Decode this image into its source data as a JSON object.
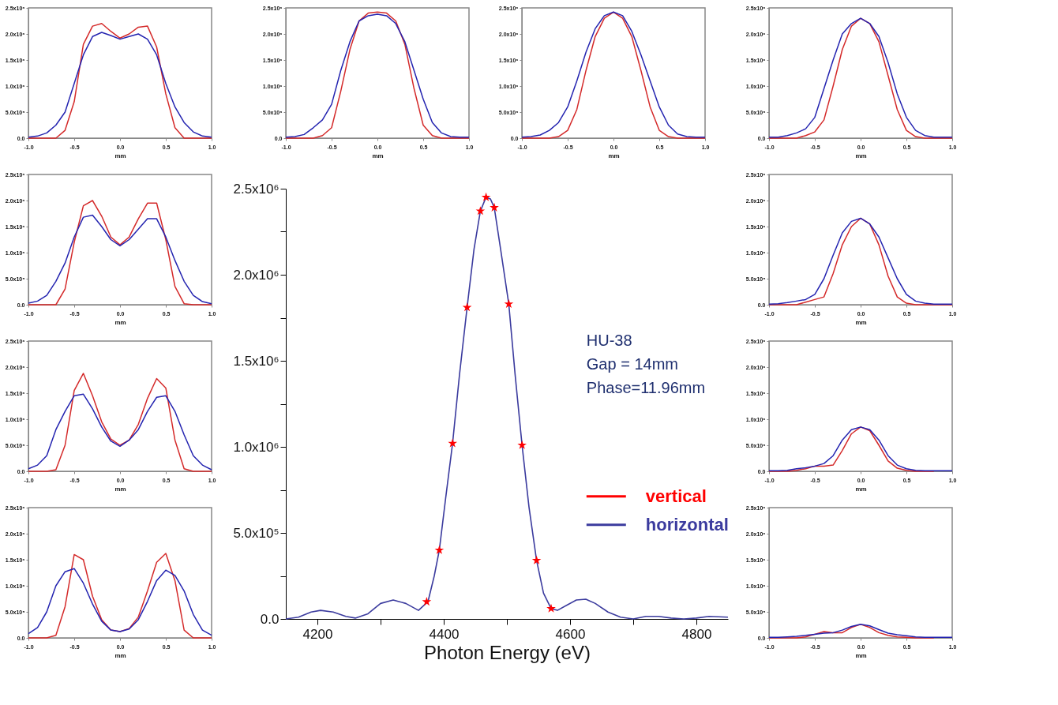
{
  "chart_data": [
    {
      "type": "line",
      "xlabel": "mm",
      "x": [
        -1,
        -0.9,
        -0.8,
        -0.7,
        -0.6,
        -0.5,
        -0.4,
        -0.3,
        -0.2,
        -0.1,
        0,
        0.1,
        0.2,
        0.3,
        0.4,
        0.5,
        0.6,
        0.7,
        0.8,
        0.9,
        1
      ],
      "xlim": [
        -1,
        1
      ],
      "xticks": [
        {
          "value": -1,
          "label": "-1.0"
        },
        {
          "value": -0.5,
          "label": "-0.5"
        },
        {
          "value": 0,
          "label": "0.0"
        },
        {
          "value": 0.5,
          "label": "0.5"
        },
        {
          "value": 1,
          "label": "1.0"
        }
      ],
      "ylim": [
        0,
        2500000.0
      ],
      "yticks": [
        {
          "value": 0,
          "label": "0.0"
        },
        {
          "value": 500000.0,
          "label": "5.0x10⁵"
        },
        {
          "value": 1000000.0,
          "label": "1.0x10⁶"
        },
        {
          "value": 1500000.0,
          "label": "1.5x10⁶"
        },
        {
          "value": 2000000.0,
          "label": "2.0x10⁶"
        },
        {
          "value": 2500000.0,
          "label": "2.5x10⁶"
        }
      ],
      "series": [
        {
          "color": "#d42a2a",
          "values": [
            0,
            0,
            0,
            0,
            150000.0,
            700000.0,
            1800000.0,
            2150000.0,
            2200000.0,
            2050000.0,
            1920000.0,
            2000000.0,
            2130000.0,
            2150000.0,
            1750000.0,
            850000.0,
            200000.0,
            0,
            0,
            0,
            0
          ]
        },
        {
          "color": "#2424b0",
          "values": [
            20000.0,
            40000.0,
            100000.0,
            250000.0,
            500000.0,
            1050000.0,
            1600000.0,
            1950000.0,
            2030000.0,
            1970000.0,
            1900000.0,
            1950000.0,
            2000000.0,
            1900000.0,
            1600000.0,
            1050000.0,
            600000.0,
            300000.0,
            120000.0,
            40000.0,
            20000.0
          ]
        }
      ]
    },
    {
      "type": "line",
      "xlabel": "mm",
      "x": [
        -1,
        -0.9,
        -0.8,
        -0.7,
        -0.6,
        -0.5,
        -0.4,
        -0.3,
        -0.2,
        -0.1,
        0,
        0.1,
        0.2,
        0.3,
        0.4,
        0.5,
        0.6,
        0.7,
        0.8,
        0.9,
        1
      ],
      "xlim": [
        -1,
        1
      ],
      "xticks": [
        {
          "value": -1,
          "label": "-1.0"
        },
        {
          "value": -0.5,
          "label": "-0.5"
        },
        {
          "value": 0,
          "label": "0.0"
        },
        {
          "value": 0.5,
          "label": "0.5"
        },
        {
          "value": 1,
          "label": "1.0"
        }
      ],
      "ylim": [
        0,
        2500000.0
      ],
      "yticks": [
        {
          "value": 0,
          "label": "0.0"
        },
        {
          "value": 500000.0,
          "label": "5.0x10⁵"
        },
        {
          "value": 1000000.0,
          "label": "1.0x10⁶"
        },
        {
          "value": 1500000.0,
          "label": "1.5x10⁶"
        },
        {
          "value": 2000000.0,
          "label": "2.0x10⁶"
        },
        {
          "value": 2500000.0,
          "label": "2.5x10⁶"
        }
      ],
      "series": [
        {
          "color": "#d42a2a",
          "values": [
            0,
            0,
            0,
            0,
            300000.0,
            1200000.0,
            1900000.0,
            2000000.0,
            1700000.0,
            1300000.0,
            1150000.0,
            1300000.0,
            1650000.0,
            1950000.0,
            1950000.0,
            1250000.0,
            350000.0,
            20000.0,
            0,
            0,
            0
          ]
        },
        {
          "color": "#2424b0",
          "values": [
            30000.0,
            70000.0,
            180000.0,
            450000.0,
            800000.0,
            1300000.0,
            1680000.0,
            1720000.0,
            1500000.0,
            1250000.0,
            1130000.0,
            1250000.0,
            1450000.0,
            1650000.0,
            1650000.0,
            1300000.0,
            850000.0,
            450000.0,
            180000.0,
            60000.0,
            20000.0
          ]
        }
      ]
    },
    {
      "type": "line",
      "xlabel": "mm",
      "x": [
        -1,
        -0.9,
        -0.8,
        -0.7,
        -0.6,
        -0.5,
        -0.4,
        -0.3,
        -0.2,
        -0.1,
        0,
        0.1,
        0.2,
        0.3,
        0.4,
        0.5,
        0.6,
        0.7,
        0.8,
        0.9,
        1
      ],
      "xlim": [
        -1,
        1
      ],
      "xticks": [
        {
          "value": -1,
          "label": "-1.0"
        },
        {
          "value": -0.5,
          "label": "-0.5"
        },
        {
          "value": 0,
          "label": "0.0"
        },
        {
          "value": 0.5,
          "label": "0.5"
        },
        {
          "value": 1,
          "label": "1.0"
        }
      ],
      "ylim": [
        0,
        2500000.0
      ],
      "yticks": [
        {
          "value": 0,
          "label": "0.0"
        },
        {
          "value": 500000.0,
          "label": "5.0x10⁵"
        },
        {
          "value": 1000000.0,
          "label": "1.0x10⁶"
        },
        {
          "value": 1500000.0,
          "label": "1.5x10⁶"
        },
        {
          "value": 2000000.0,
          "label": "2.0x10⁶"
        },
        {
          "value": 2500000.0,
          "label": "2.5x10⁶"
        }
      ],
      "series": [
        {
          "color": "#d42a2a",
          "values": [
            0,
            0,
            0,
            30000.0,
            500000.0,
            1550000.0,
            1880000.0,
            1450000.0,
            950000.0,
            620000.0,
            500000.0,
            600000.0,
            900000.0,
            1400000.0,
            1780000.0,
            1600000.0,
            600000.0,
            50000.0,
            0,
            0,
            0
          ]
        },
        {
          "color": "#2424b0",
          "values": [
            50000.0,
            120000.0,
            300000.0,
            800000.0,
            1150000.0,
            1450000.0,
            1480000.0,
            1200000.0,
            850000.0,
            580000.0,
            480000.0,
            600000.0,
            800000.0,
            1150000.0,
            1420000.0,
            1450000.0,
            1150000.0,
            700000.0,
            300000.0,
            120000.0,
            30000.0
          ]
        }
      ]
    },
    {
      "type": "line",
      "xlabel": "mm",
      "x": [
        -1,
        -0.9,
        -0.8,
        -0.7,
        -0.6,
        -0.5,
        -0.4,
        -0.3,
        -0.2,
        -0.1,
        0,
        0.1,
        0.2,
        0.3,
        0.4,
        0.5,
        0.6,
        0.7,
        0.8,
        0.9,
        1
      ],
      "xlim": [
        -1,
        1
      ],
      "xticks": [
        {
          "value": -1,
          "label": "-1.0"
        },
        {
          "value": -0.5,
          "label": "-0.5"
        },
        {
          "value": 0,
          "label": "0.0"
        },
        {
          "value": 0.5,
          "label": "0.5"
        },
        {
          "value": 1,
          "label": "1.0"
        }
      ],
      "ylim": [
        0,
        2500000.0
      ],
      "yticks": [
        {
          "value": 0,
          "label": "0.0"
        },
        {
          "value": 500000.0,
          "label": "5.0x10⁵"
        },
        {
          "value": 1000000.0,
          "label": "1.0x10⁶"
        },
        {
          "value": 1500000.0,
          "label": "1.5x10⁶"
        },
        {
          "value": 2000000.0,
          "label": "2.0x10⁶"
        },
        {
          "value": 2500000.0,
          "label": "2.5x10⁶"
        }
      ],
      "series": [
        {
          "color": "#d42a2a",
          "values": [
            0,
            0,
            0,
            50000.0,
            600000.0,
            1600000.0,
            1500000.0,
            800000.0,
            350000.0,
            150000.0,
            120000.0,
            180000.0,
            400000.0,
            900000.0,
            1450000.0,
            1620000.0,
            1100000.0,
            150000.0,
            0,
            0,
            0
          ]
        },
        {
          "color": "#2424b0",
          "values": [
            80000.0,
            200000.0,
            500000.0,
            1000000.0,
            1270000.0,
            1330000.0,
            1050000.0,
            650000.0,
            320000.0,
            150000.0,
            120000.0,
            170000.0,
            350000.0,
            700000.0,
            1100000.0,
            1300000.0,
            1200000.0,
            900000.0,
            450000.0,
            150000.0,
            50000.0
          ]
        }
      ]
    },
    {
      "type": "line",
      "xlabel": "mm",
      "x": [
        -1,
        -0.9,
        -0.8,
        -0.7,
        -0.6,
        -0.5,
        -0.4,
        -0.3,
        -0.2,
        -0.1,
        0,
        0.1,
        0.2,
        0.3,
        0.4,
        0.5,
        0.6,
        0.7,
        0.8,
        0.9,
        1
      ],
      "xlim": [
        -1,
        1
      ],
      "xticks": [
        {
          "value": -1,
          "label": "-1.0"
        },
        {
          "value": -0.5,
          "label": "-0.5"
        },
        {
          "value": 0,
          "label": "0.0"
        },
        {
          "value": 0.5,
          "label": "0.5"
        },
        {
          "value": 1,
          "label": "1.0"
        }
      ],
      "ylim": [
        0,
        2500000.0
      ],
      "yticks": [
        {
          "value": 0,
          "label": "0.0"
        },
        {
          "value": 500000.0,
          "label": "5.0x10⁵"
        },
        {
          "value": 1000000.0,
          "label": "1.0x10⁶"
        },
        {
          "value": 1500000.0,
          "label": "1.5x10⁶"
        },
        {
          "value": 2000000.0,
          "label": "2.0x10⁶"
        },
        {
          "value": 2500000.0,
          "label": "2.5x10⁶"
        }
      ],
      "series": [
        {
          "color": "#d42a2a",
          "values": [
            0,
            0,
            0,
            0,
            50000.0,
            200000.0,
            900000.0,
            1700000.0,
            2250000.0,
            2400000.0,
            2420000.0,
            2400000.0,
            2250000.0,
            1800000.0,
            950000.0,
            250000.0,
            50000.0,
            0,
            0,
            0,
            0
          ]
        },
        {
          "color": "#2424b0",
          "values": [
            20000.0,
            30000.0,
            70000.0,
            200000.0,
            350000.0,
            650000.0,
            1300000.0,
            1850000.0,
            2250000.0,
            2350000.0,
            2380000.0,
            2350000.0,
            2200000.0,
            1850000.0,
            1300000.0,
            750000.0,
            300000.0,
            100000.0,
            30000.0,
            20000.0,
            20000.0
          ]
        }
      ]
    },
    {
      "type": "line",
      "xlabel": "mm",
      "x": [
        -1,
        -0.9,
        -0.8,
        -0.7,
        -0.6,
        -0.5,
        -0.4,
        -0.3,
        -0.2,
        -0.1,
        0,
        0.1,
        0.2,
        0.3,
        0.4,
        0.5,
        0.6,
        0.7,
        0.8,
        0.9,
        1
      ],
      "xlim": [
        -1,
        1
      ],
      "xticks": [
        {
          "value": -1,
          "label": "-1.0"
        },
        {
          "value": -0.5,
          "label": "-0.5"
        },
        {
          "value": 0,
          "label": "0.0"
        },
        {
          "value": 0.5,
          "label": "0.5"
        },
        {
          "value": 1,
          "label": "1.0"
        }
      ],
      "ylim": [
        0,
        2500000.0
      ],
      "yticks": [
        {
          "value": 0,
          "label": "0.0"
        },
        {
          "value": 500000.0,
          "label": "5.0x10⁵"
        },
        {
          "value": 1000000.0,
          "label": "1.0x10⁶"
        },
        {
          "value": 1500000.0,
          "label": "1.5x10⁶"
        },
        {
          "value": 2000000.0,
          "label": "2.0x10⁶"
        },
        {
          "value": 2500000.0,
          "label": "2.5x10⁶"
        }
      ],
      "series": [
        {
          "color": "#d42a2a",
          "values": [
            0,
            0,
            0,
            0,
            30000.0,
            150000.0,
            550000.0,
            1300000.0,
            1950000.0,
            2300000.0,
            2420000.0,
            2300000.0,
            1950000.0,
            1300000.0,
            600000.0,
            150000.0,
            30000.0,
            0,
            0,
            0,
            0
          ]
        },
        {
          "color": "#2424b0",
          "values": [
            20000.0,
            30000.0,
            60000.0,
            150000.0,
            300000.0,
            600000.0,
            1100000.0,
            1650000.0,
            2100000.0,
            2350000.0,
            2420000.0,
            2350000.0,
            2050000.0,
            1600000.0,
            1100000.0,
            600000.0,
            250000.0,
            80000.0,
            30000.0,
            20000.0,
            20000.0
          ]
        }
      ]
    },
    {
      "type": "line",
      "xlabel": "Photon Energy (eV)",
      "legend": "right",
      "annotations": [
        "HU-38",
        "Gap = 14mm",
        "Phase=11.96mm"
      ],
      "xlim": [
        4150,
        4850
      ],
      "xticks": [
        {
          "value": 4200,
          "label": "4200"
        },
        {
          "value": 4300,
          "label": null
        },
        {
          "value": 4400,
          "label": "4400"
        },
        {
          "value": 4500,
          "label": null
        },
        {
          "value": 4600,
          "label": "4600"
        },
        {
          "value": 4700,
          "label": null
        },
        {
          "value": 4800,
          "label": "4800"
        }
      ],
      "ylim": [
        0,
        2500000.0
      ],
      "yticks": [
        {
          "value": 0,
          "label": "0.0"
        },
        {
          "value": 250000.0,
          "label": null
        },
        {
          "value": 500000.0,
          "label": "5.0x10⁵"
        },
        {
          "value": 750000.0,
          "label": null
        },
        {
          "value": 1000000.0,
          "label": "1.0x10⁶"
        },
        {
          "value": 1250000.0,
          "label": null
        },
        {
          "value": 1500000.0,
          "label": "1.5x10⁶"
        },
        {
          "value": 1750000.0,
          "label": null
        },
        {
          "value": 2000000.0,
          "label": "2.0x10⁶"
        },
        {
          "value": 2250000.0,
          "label": null
        },
        {
          "value": 2500000.0,
          "label": "2.5x10⁶"
        }
      ],
      "series": [
        {
          "name": "horizontal",
          "color": "#3b3b9e",
          "x": [
            4150,
            4170,
            4190,
            4205,
            4225,
            4245,
            4260,
            4280,
            4300,
            4320,
            4340,
            4360,
            4375,
            4385,
            4393,
            4403,
            4414,
            4425,
            4437,
            4448,
            4458,
            4467,
            4474,
            4480,
            4490,
            4503,
            4513,
            4524,
            4535,
            4547,
            4558,
            4570,
            4580,
            4595,
            4610,
            4625,
            4640,
            4660,
            4680,
            4700,
            4720,
            4740,
            4760,
            4780,
            4800,
            4820,
            4850
          ],
          "values": [
            0,
            10000.0,
            40000.0,
            50000.0,
            40000.0,
            15000.0,
            5000.0,
            30000.0,
            90000.0,
            110000.0,
            90000.0,
            50000.0,
            100000.0,
            250000.0,
            400000.0,
            700000.0,
            1020000.0,
            1420000.0,
            1810000.0,
            2150000.0,
            2370000.0,
            2450000.0,
            2440000.0,
            2390000.0,
            2150000.0,
            1830000.0,
            1420000.0,
            1010000.0,
            650000.0,
            340000.0,
            150000.0,
            60000.0,
            50000.0,
            80000.0,
            110000.0,
            115000.0,
            90000.0,
            40000.0,
            10000.0,
            0,
            15000.0,
            15000.0,
            5000.0,
            0,
            5000.0,
            15000.0,
            10000.0
          ]
        },
        {
          "name": "vertical",
          "color": "#ff0000",
          "type": "scatter",
          "marker": "star",
          "x": [
            4373,
            4393,
            4414,
            4437,
            4458,
            4467,
            4480,
            4503,
            4524,
            4547,
            4570
          ],
          "values": [
            100000.0,
            400000.0,
            1020000.0,
            1810000.0,
            2370000.0,
            2450000.0,
            2390000.0,
            1830000.0,
            1010000.0,
            340000.0,
            60000.0
          ]
        }
      ]
    },
    {
      "type": "line",
      "xlabel": "mm",
      "x": [
        -1,
        -0.9,
        -0.8,
        -0.7,
        -0.6,
        -0.5,
        -0.4,
        -0.3,
        -0.2,
        -0.1,
        0,
        0.1,
        0.2,
        0.3,
        0.4,
        0.5,
        0.6,
        0.7,
        0.8,
        0.9,
        1
      ],
      "xlim": [
        -1,
        1
      ],
      "xticks": [
        {
          "value": -1,
          "label": "-1.0"
        },
        {
          "value": -0.5,
          "label": "-0.5"
        },
        {
          "value": 0,
          "label": "0.0"
        },
        {
          "value": 0.5,
          "label": "0.5"
        },
        {
          "value": 1,
          "label": "1.0"
        }
      ],
      "ylim": [
        0,
        2500000.0
      ],
      "yticks": [
        {
          "value": 0,
          "label": "0.0"
        },
        {
          "value": 500000.0,
          "label": "5.0x10⁵"
        },
        {
          "value": 1000000.0,
          "label": "1.0x10⁶"
        },
        {
          "value": 1500000.0,
          "label": "1.5x10⁶"
        },
        {
          "value": 2000000.0,
          "label": "2.0x10⁶"
        },
        {
          "value": 2500000.0,
          "label": "2.5x10⁶"
        }
      ],
      "series": [
        {
          "color": "#d42a2a",
          "values": [
            0,
            0,
            0,
            0,
            50000.0,
            120000.0,
            350000.0,
            1000000.0,
            1700000.0,
            2150000.0,
            2300000.0,
            2200000.0,
            1850000.0,
            1200000.0,
            550000.0,
            150000.0,
            30000.0,
            0,
            0,
            0,
            0
          ]
        },
        {
          "color": "#2424b0",
          "values": [
            20000.0,
            20000.0,
            50000.0,
            100000.0,
            180000.0,
            400000.0,
            950000.0,
            1500000.0,
            2000000.0,
            2200000.0,
            2300000.0,
            2200000.0,
            1950000.0,
            1450000.0,
            850000.0,
            400000.0,
            150000.0,
            50000.0,
            20000.0,
            20000.0,
            20000.0
          ]
        }
      ]
    },
    {
      "type": "line",
      "xlabel": "mm",
      "x": [
        -1,
        -0.9,
        -0.8,
        -0.7,
        -0.6,
        -0.5,
        -0.4,
        -0.3,
        -0.2,
        -0.1,
        0,
        0.1,
        0.2,
        0.3,
        0.4,
        0.5,
        0.6,
        0.7,
        0.8,
        0.9,
        1
      ],
      "xlim": [
        -1,
        1
      ],
      "xticks": [
        {
          "value": -1,
          "label": "-1.0"
        },
        {
          "value": -0.5,
          "label": "-0.5"
        },
        {
          "value": 0,
          "label": "0.0"
        },
        {
          "value": 0.5,
          "label": "0.5"
        },
        {
          "value": 1,
          "label": "1.0"
        }
      ],
      "ylim": [
        0,
        2500000.0
      ],
      "yticks": [
        {
          "value": 0,
          "label": "0.0"
        },
        {
          "value": 500000.0,
          "label": "5.0x10⁵"
        },
        {
          "value": 1000000.0,
          "label": "1.0x10⁶"
        },
        {
          "value": 1500000.0,
          "label": "1.5x10⁶"
        },
        {
          "value": 2000000.0,
          "label": "2.0x10⁶"
        },
        {
          "value": 2500000.0,
          "label": "2.5x10⁶"
        }
      ],
      "series": [
        {
          "color": "#d42a2a",
          "values": [
            0,
            0,
            0,
            0,
            50000.0,
            100000.0,
            150000.0,
            600000.0,
            1150000.0,
            1500000.0,
            1660000.0,
            1550000.0,
            1150000.0,
            550000.0,
            150000.0,
            30000.0,
            0,
            0,
            0,
            0,
            0
          ]
        },
        {
          "color": "#2424b0",
          "values": [
            10000.0,
            20000.0,
            40000.0,
            70000.0,
            100000.0,
            200000.0,
            500000.0,
            950000.0,
            1380000.0,
            1600000.0,
            1660000.0,
            1550000.0,
            1300000.0,
            900000.0,
            500000.0,
            200000.0,
            70000.0,
            30000.0,
            10000.0,
            10000.0,
            10000.0
          ]
        }
      ]
    },
    {
      "type": "line",
      "xlabel": "mm",
      "x": [
        -1,
        -0.9,
        -0.8,
        -0.7,
        -0.6,
        -0.5,
        -0.4,
        -0.3,
        -0.2,
        -0.1,
        0,
        0.1,
        0.2,
        0.3,
        0.4,
        0.5,
        0.6,
        0.7,
        0.8,
        0.9,
        1
      ],
      "xlim": [
        -1,
        1
      ],
      "xticks": [
        {
          "value": -1,
          "label": "-1.0"
        },
        {
          "value": -0.5,
          "label": "-0.5"
        },
        {
          "value": 0,
          "label": "0.0"
        },
        {
          "value": 0.5,
          "label": "0.5"
        },
        {
          "value": 1,
          "label": "1.0"
        }
      ],
      "ylim": [
        0,
        2500000.0
      ],
      "yticks": [
        {
          "value": 0,
          "label": "0.0"
        },
        {
          "value": 500000.0,
          "label": "5.0x10⁵"
        },
        {
          "value": 1000000.0,
          "label": "1.0x10⁶"
        },
        {
          "value": 1500000.0,
          "label": "1.5x10⁶"
        },
        {
          "value": 2000000.0,
          "label": "2.0x10⁶"
        },
        {
          "value": 2500000.0,
          "label": "2.5x10⁶"
        }
      ],
      "series": [
        {
          "color": "#d42a2a",
          "values": [
            0,
            0,
            0,
            20000.0,
            50000.0,
            100000.0,
            100000.0,
            120000.0,
            400000.0,
            720000.0,
            850000.0,
            780000.0,
            500000.0,
            200000.0,
            60000.0,
            20000.0,
            0,
            0,
            0,
            null,
            null
          ]
        },
        {
          "color": "#2424b0",
          "values": [
            10000.0,
            10000.0,
            20000.0,
            50000.0,
            70000.0,
            100000.0,
            150000.0,
            300000.0,
            600000.0,
            800000.0,
            850000.0,
            800000.0,
            600000.0,
            300000.0,
            120000.0,
            50000.0,
            20000.0,
            10000.0,
            10000.0,
            10000.0,
            10000.0
          ]
        }
      ]
    },
    {
      "type": "line",
      "xlabel": "mm",
      "x": [
        -1,
        -0.9,
        -0.8,
        -0.7,
        -0.6,
        -0.5,
        -0.4,
        -0.3,
        -0.2,
        -0.1,
        0,
        0.1,
        0.2,
        0.3,
        0.4,
        0.5,
        0.6,
        0.7,
        0.8,
        0.9,
        1
      ],
      "xlim": [
        -1,
        1
      ],
      "xticks": [
        {
          "value": -1,
          "label": "-1.0"
        },
        {
          "value": -0.5,
          "label": "-0.5"
        },
        {
          "value": 0,
          "label": "0.0"
        },
        {
          "value": 0.5,
          "label": "0.5"
        },
        {
          "value": 1,
          "label": "1.0"
        }
      ],
      "ylim": [
        0,
        2500000.0
      ],
      "yticks": [
        {
          "value": 0,
          "label": "0.0"
        },
        {
          "value": 500000.0,
          "label": "5.0x10⁵"
        },
        {
          "value": 1000000.0,
          "label": "1.0x10⁶"
        },
        {
          "value": 1500000.0,
          "label": "1.5x10⁶"
        },
        {
          "value": 2000000.0,
          "label": "2.0x10⁶"
        },
        {
          "value": 2500000.0,
          "label": "2.5x10⁶"
        }
      ],
      "series": [
        {
          "color": "#d42a2a",
          "values": [
            0,
            0,
            0,
            0,
            20000.0,
            70000.0,
            120000.0,
            100000.0,
            100000.0,
            200000.0,
            260000.0,
            200000.0,
            100000.0,
            50000.0,
            20000.0,
            10000.0,
            0,
            0,
            0,
            null,
            null
          ]
        },
        {
          "color": "#2424b0",
          "values": [
            10000.0,
            10000.0,
            20000.0,
            30000.0,
            50000.0,
            70000.0,
            90000.0,
            100000.0,
            150000.0,
            220000.0,
            260000.0,
            230000.0,
            160000.0,
            90000.0,
            60000.0,
            40000.0,
            20000.0,
            10000.0,
            10000.0,
            10000.0,
            10000.0
          ]
        }
      ]
    }
  ]
}
